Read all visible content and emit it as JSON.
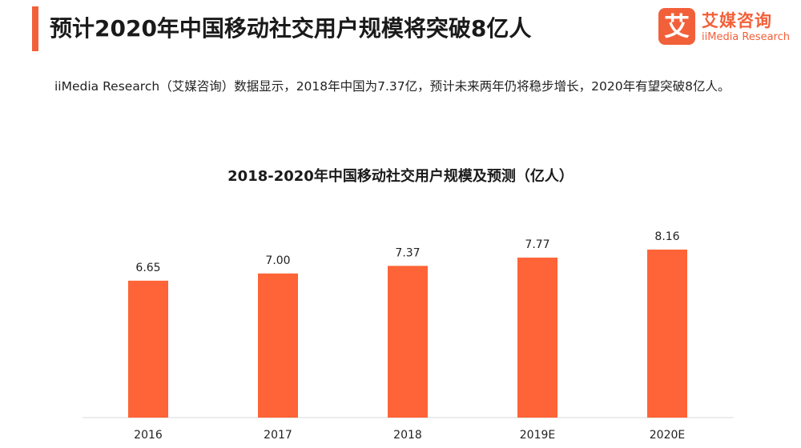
{
  "header": {
    "title": "预计2020年中国移动社交用户规模将突破8亿人",
    "accent_color": "#f2603a"
  },
  "logo": {
    "glyph": "艾",
    "name_cn": "艾媒咨询",
    "name_en": "iiMedia Research"
  },
  "summary": "iiMedia Research（艾媒咨询）数据显示，2018年中国为7.37亿，预计未来两年仍将稳步增长，2020年有望突破8亿人。",
  "chart_data": {
    "type": "bar",
    "title": "2018-2020年中国移动社交用户规模及预测（亿人）",
    "categories": [
      "2016",
      "2017",
      "2018",
      "2019E",
      "2020E"
    ],
    "values": [
      6.65,
      7.0,
      7.37,
      7.77,
      8.16
    ],
    "value_labels": [
      "6.65",
      "7.00",
      "7.37",
      "7.77",
      "8.16"
    ],
    "bar_color": "#fe6437",
    "ylim": [
      0,
      8.16
    ],
    "grid": false,
    "legend": "none"
  }
}
